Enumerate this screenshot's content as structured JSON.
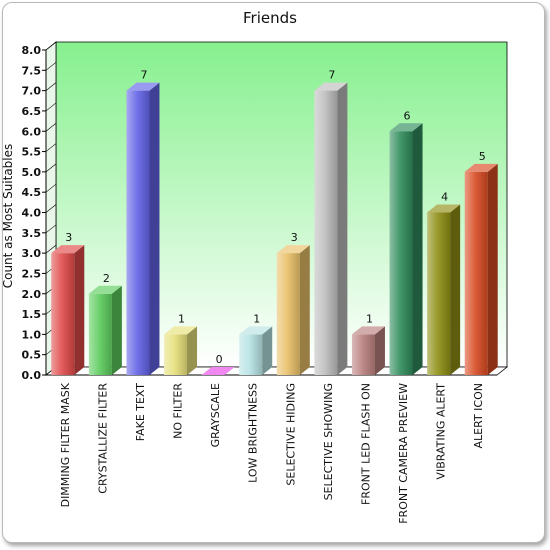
{
  "chart_data": {
    "type": "bar",
    "title": "Friends",
    "xlabel": "",
    "ylabel": "Count as Most Suitables",
    "ylim": [
      0,
      8
    ],
    "yticks": [
      "0.0",
      "0.5",
      "1.0",
      "1.5",
      "2.0",
      "2.5",
      "3.0",
      "3.5",
      "4.0",
      "4.5",
      "5.0",
      "5.5",
      "6.0",
      "6.5",
      "7.0",
      "7.5",
      "8.0"
    ],
    "grid": false,
    "legend": "none",
    "plot_background": [
      "#ffffff",
      "#86f08e"
    ],
    "categories": [
      "DIMMING FILTER MASK",
      "CRYSTALLIZE FILTER",
      "FAKE TEXT",
      "NO FILTER",
      "GRAYSCALE",
      "LOW BRIGHTNESS",
      "SELECTIVE HIDING",
      "SELECTIVE SHOWING",
      "FRONT LED FLASH ON",
      "FRONT CAMERA PREVIEW",
      "VIBRATING ALERT",
      "ALERT ICON"
    ],
    "values": [
      3,
      2,
      7,
      1,
      0,
      1,
      3,
      7,
      1,
      6,
      4,
      5
    ],
    "colors": [
      "#e04a4a",
      "#5ccc5c",
      "#6363e8",
      "#e6e07a",
      "#e64ae6",
      "#b6e2e4",
      "#e9c068",
      "#bdbdbd",
      "#b97f7d",
      "#2e8b5a",
      "#8f8f14",
      "#d84a22"
    ]
  }
}
